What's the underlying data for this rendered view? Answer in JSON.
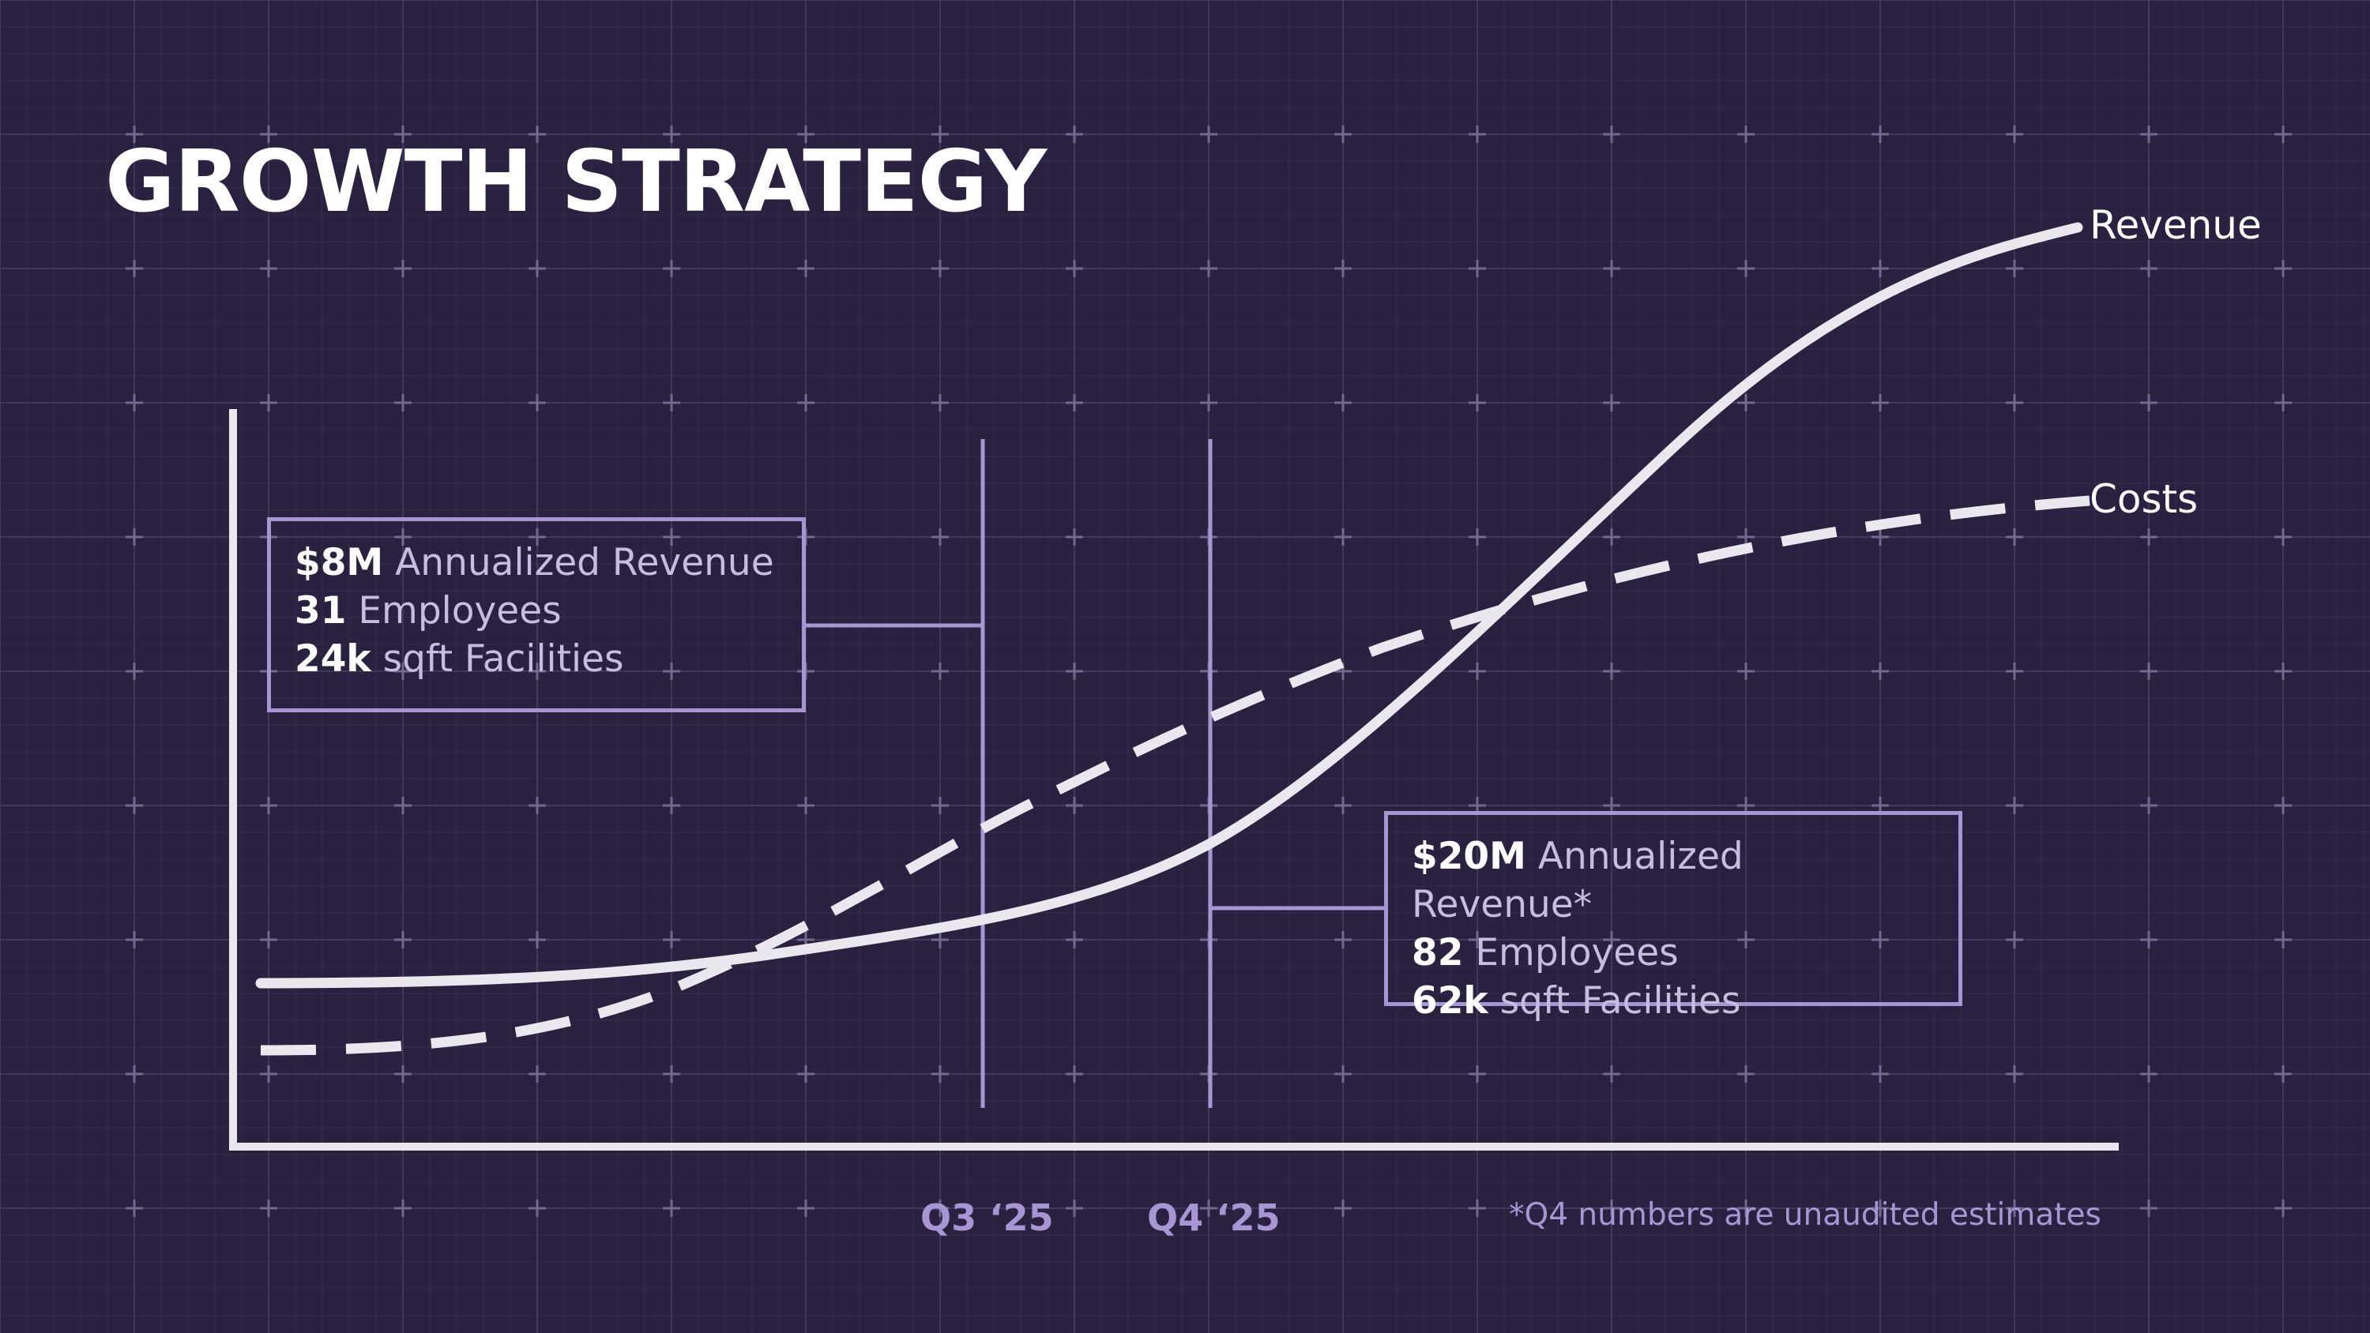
{
  "title": "GROWTH STRATEGY",
  "colors": {
    "background": "#2a2140",
    "grid": "#4a3f63",
    "axis": "#ebe7ee",
    "accent": "#a796d3",
    "text": "#ffffff",
    "muted_text": "#c7bedf"
  },
  "chart_data": {
    "type": "line",
    "title": "GROWTH STRATEGY",
    "xlabel": "",
    "ylabel": "",
    "grid": true,
    "legend": "direct labels at line ends",
    "x_ticks": [
      "Q3 ‘25",
      "Q4 ‘25"
    ],
    "series": [
      {
        "name": "Revenue",
        "style": "solid"
      },
      {
        "name": "Costs",
        "style": "dashed"
      }
    ],
    "annotations": [
      {
        "at": "Q3 ‘25",
        "lines": [
          {
            "value": "$8M",
            "text": "Annualized Revenue"
          },
          {
            "value": "31",
            "text": "Employees"
          },
          {
            "value": "24k",
            "text": "sqft Facilities"
          }
        ]
      },
      {
        "at": "Q4 ‘25",
        "lines": [
          {
            "value": "$20M",
            "text": "Annualized Revenue*"
          },
          {
            "value": "82",
            "text": "Employees"
          },
          {
            "value": "62k",
            "text": "sqft Facilities"
          }
        ]
      }
    ],
    "footnote": "*Q4 numbers are unaudited estimates"
  }
}
